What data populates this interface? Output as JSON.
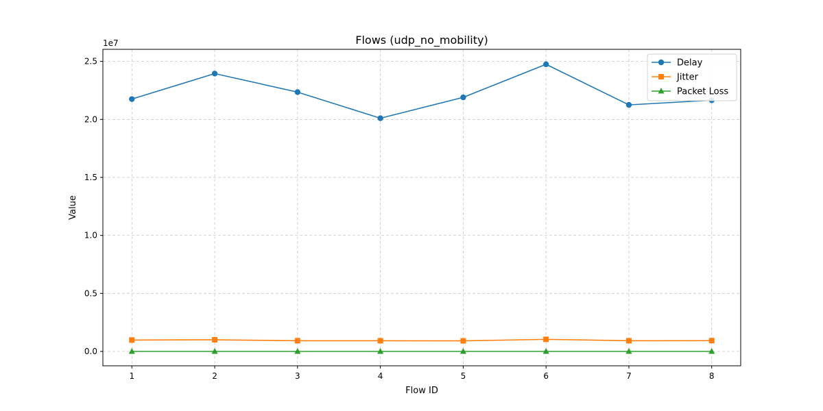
{
  "chart_data": {
    "type": "line",
    "title": "Flows (udp_no_mobility)",
    "xlabel": "Flow ID",
    "ylabel": "Value",
    "y_offset_label": "1e7",
    "x": [
      1,
      2,
      3,
      4,
      5,
      6,
      7,
      8
    ],
    "xlim": [
      0.65,
      8.35
    ],
    "ylim": [
      -1240000,
      26040000
    ],
    "yticks": [
      0,
      5000000,
      10000000,
      15000000,
      20000000,
      25000000
    ],
    "ytick_labels": [
      "0.0",
      "0.5",
      "1.0",
      "1.5",
      "2.0",
      "2.5"
    ],
    "grid": true,
    "legend_position": "top-right",
    "series": [
      {
        "name": "Delay",
        "color": "#1f77b4",
        "marker": "circle",
        "values": [
          21750000,
          23950000,
          22350000,
          20100000,
          21900000,
          24750000,
          21250000,
          21650000
        ]
      },
      {
        "name": "Jitter",
        "color": "#ff7f0e",
        "marker": "square",
        "values": [
          980000,
          1000000,
          920000,
          920000,
          910000,
          1040000,
          920000,
          930000
        ]
      },
      {
        "name": "Packet Loss",
        "color": "#2ca02c",
        "marker": "triangle",
        "values": [
          0,
          0,
          0,
          0,
          0,
          0,
          0,
          0
        ]
      }
    ]
  }
}
